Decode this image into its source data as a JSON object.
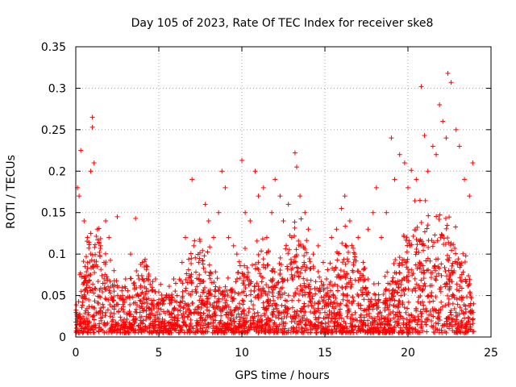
{
  "chart_data": {
    "type": "scatter",
    "title": "Day 105 of 2023, Rate Of TEC Index for receiver ske8",
    "xlabel": "GPS time / hours",
    "ylabel": "ROTI / TECUs",
    "xlim": [
      0,
      25
    ],
    "ylim": [
      0,
      0.35
    ],
    "xticks": [
      0,
      5,
      10,
      15,
      20,
      25
    ],
    "xtick_labels": [
      "0",
      "5",
      "10",
      "15",
      "20",
      "25"
    ],
    "yticks": [
      0,
      0.05,
      0.1,
      0.15,
      0.2,
      0.25,
      0.3,
      0.35
    ],
    "ytick_labels": [
      "0",
      "0.05",
      "0.1",
      "0.15",
      "0.2",
      "0.25",
      "0.3",
      "0.35"
    ],
    "grid": true,
    "marker": "plus",
    "color": "#ff0000",
    "series": [
      {
        "x": [
          0.1,
          0.2,
          0.3,
          0.5,
          0.7,
          0.9,
          1.0,
          1.0,
          1.1,
          1.3,
          1.5,
          1.7,
          1.8,
          2.0,
          2.3,
          2.5,
          2.8,
          3.0,
          3.3,
          3.6,
          3.8,
          4.0,
          4.3,
          4.6,
          4.8,
          5.0,
          5.3,
          5.6,
          5.9,
          6.1,
          6.4,
          6.6,
          7.0,
          7.1,
          7.4,
          7.8,
          8.0,
          8.3,
          8.6,
          8.8,
          9.0,
          9.2,
          9.5,
          9.7,
          10.0,
          10.2,
          10.5,
          10.8,
          11.0,
          11.3,
          11.5,
          11.8,
          12.0,
          12.3,
          12.5,
          12.8,
          13.0,
          13.2,
          13.3,
          13.5,
          13.8,
          14.0,
          14.3,
          14.6,
          14.9,
          15.1,
          15.4,
          15.7,
          16.0,
          16.2,
          16.5,
          16.8,
          17.0,
          17.3,
          17.6,
          17.9,
          18.1,
          18.4,
          18.7,
          19.0,
          19.2,
          19.5,
          19.8,
          20.0,
          20.2,
          20.5,
          20.8,
          21.0,
          21.2,
          21.5,
          21.7,
          21.9,
          22.1,
          22.3,
          22.4,
          22.6,
          22.9,
          23.1,
          23.4,
          23.7,
          23.9
        ],
        "y": [
          0.18,
          0.17,
          0.225,
          0.14,
          0.12,
          0.2,
          0.265,
          0.253,
          0.21,
          0.13,
          0.11,
          0.09,
          0.14,
          0.12,
          0.08,
          0.145,
          0.06,
          0.07,
          0.1,
          0.143,
          0.07,
          0.09,
          0.085,
          0.06,
          0.07,
          0.045,
          0.04,
          0.05,
          0.07,
          0.05,
          0.09,
          0.12,
          0.19,
          0.11,
          0.09,
          0.16,
          0.14,
          0.12,
          0.15,
          0.2,
          0.18,
          0.12,
          0.11,
          0.1,
          0.213,
          0.15,
          0.14,
          0.2,
          0.17,
          0.18,
          0.12,
          0.15,
          0.19,
          0.17,
          0.14,
          0.16,
          0.12,
          0.222,
          0.205,
          0.17,
          0.15,
          0.13,
          0.1,
          0.11,
          0.09,
          0.07,
          0.12,
          0.13,
          0.155,
          0.17,
          0.14,
          0.1,
          0.12,
          0.09,
          0.13,
          0.15,
          0.18,
          0.12,
          0.15,
          0.24,
          0.19,
          0.22,
          0.21,
          0.18,
          0.201,
          0.19,
          0.302,
          0.243,
          0.2,
          0.23,
          0.22,
          0.28,
          0.26,
          0.24,
          0.318,
          0.307,
          0.25,
          0.23,
          0.19,
          0.17,
          0.21
        ]
      },
      {
        "x_range": [
          0,
          24
        ],
        "note_density": "dense"
      }
    ]
  }
}
